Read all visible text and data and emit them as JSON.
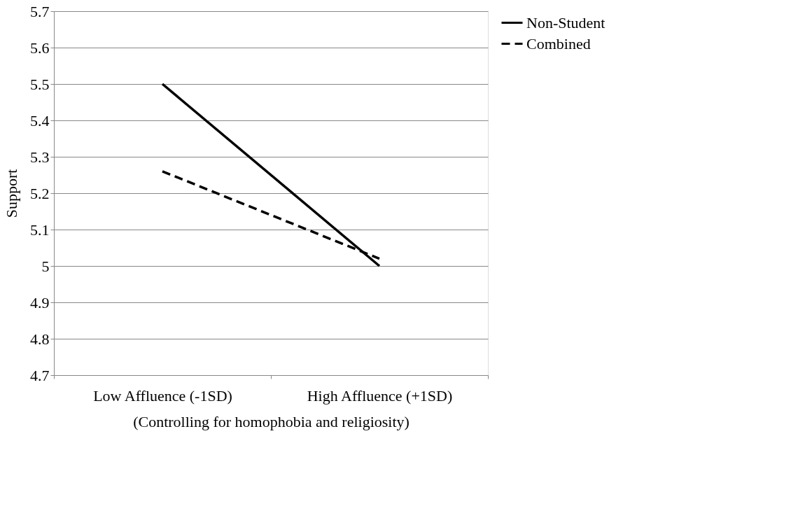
{
  "chart_data": {
    "type": "line",
    "xlabel": "(Controlling for homophobia and religiosity)",
    "ylabel": "Support",
    "categories": [
      "Low Affluence (-1SD)",
      "High Affluence (+1SD)"
    ],
    "series": [
      {
        "name": "Non-Student",
        "color": "#000000",
        "line_style": "solid",
        "values": [
          5.5,
          5.0
        ]
      },
      {
        "name": "Combined",
        "color": "#000000",
        "line_style": "dashed",
        "values": [
          5.26,
          5.02
        ]
      }
    ],
    "ylim": [
      4.7,
      5.7
    ],
    "yticks": [
      4.7,
      4.8,
      4.9,
      5,
      5.1,
      5.2,
      5.3,
      5.4,
      5.5,
      5.6,
      5.7
    ],
    "grid": "y",
    "legend": "right",
    "marker": "none"
  }
}
